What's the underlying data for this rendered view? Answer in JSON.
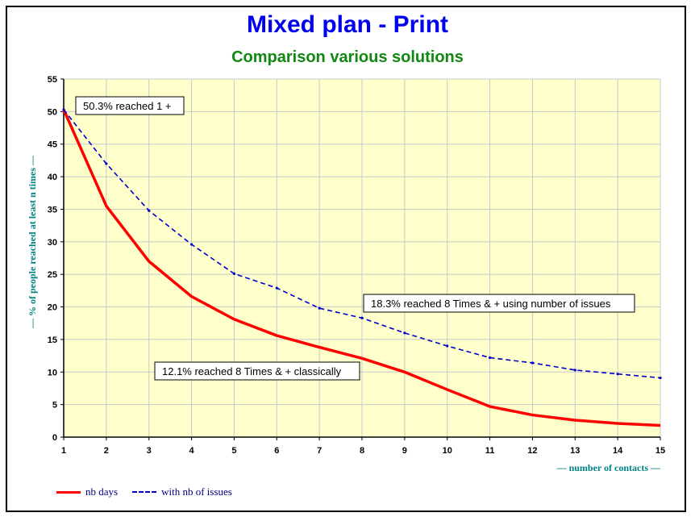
{
  "title": "Mixed plan - Print",
  "subtitle": "Comparison various solutions",
  "chart_data": {
    "type": "line",
    "x": [
      1,
      2,
      3,
      4,
      5,
      6,
      7,
      8,
      9,
      10,
      11,
      12,
      13,
      14,
      15
    ],
    "x_tick_labels": [
      "1",
      "2",
      "3",
      "4",
      "5",
      "6",
      "7",
      "8",
      "9",
      "10",
      "11",
      "12",
      "13",
      "14",
      "15"
    ],
    "y_ticks": [
      0,
      5,
      10,
      15,
      20,
      25,
      30,
      35,
      40,
      45,
      50,
      55
    ],
    "ylim": [
      0,
      55
    ],
    "xlim": [
      1,
      15
    ],
    "xlabel": "— number of contacts —",
    "ylabel": "— % of people reached at least n times —",
    "grid": true,
    "legend_position": "bottom-left",
    "series": [
      {
        "name": "nb days",
        "color": "#ff0000",
        "style": "solid",
        "values": [
          50.3,
          35.5,
          27.0,
          21.6,
          18.1,
          15.6,
          13.8,
          12.1,
          10.0,
          7.3,
          4.7,
          3.4,
          2.6,
          2.1,
          1.8
        ]
      },
      {
        "name": "with nb of issues",
        "color": "#0000cc",
        "style": "dashed",
        "values": [
          50.3,
          42.0,
          34.8,
          29.6,
          25.1,
          22.9,
          19.8,
          18.3,
          16.0,
          14.0,
          12.2,
          11.4,
          10.3,
          9.7,
          9.1
        ]
      }
    ],
    "annotations": [
      {
        "text": "50.3% reached 1 +"
      },
      {
        "text": "18.3% reached 8 Times & + using number of issues"
      },
      {
        "text": "12.1% reached 8 Times & + classically"
      }
    ]
  },
  "colors": {
    "plot_background": "#ffffcc",
    "grid": "#c8c8c8",
    "title": "#0000ee",
    "subtitle": "#118811",
    "axis_label": "#008080"
  }
}
